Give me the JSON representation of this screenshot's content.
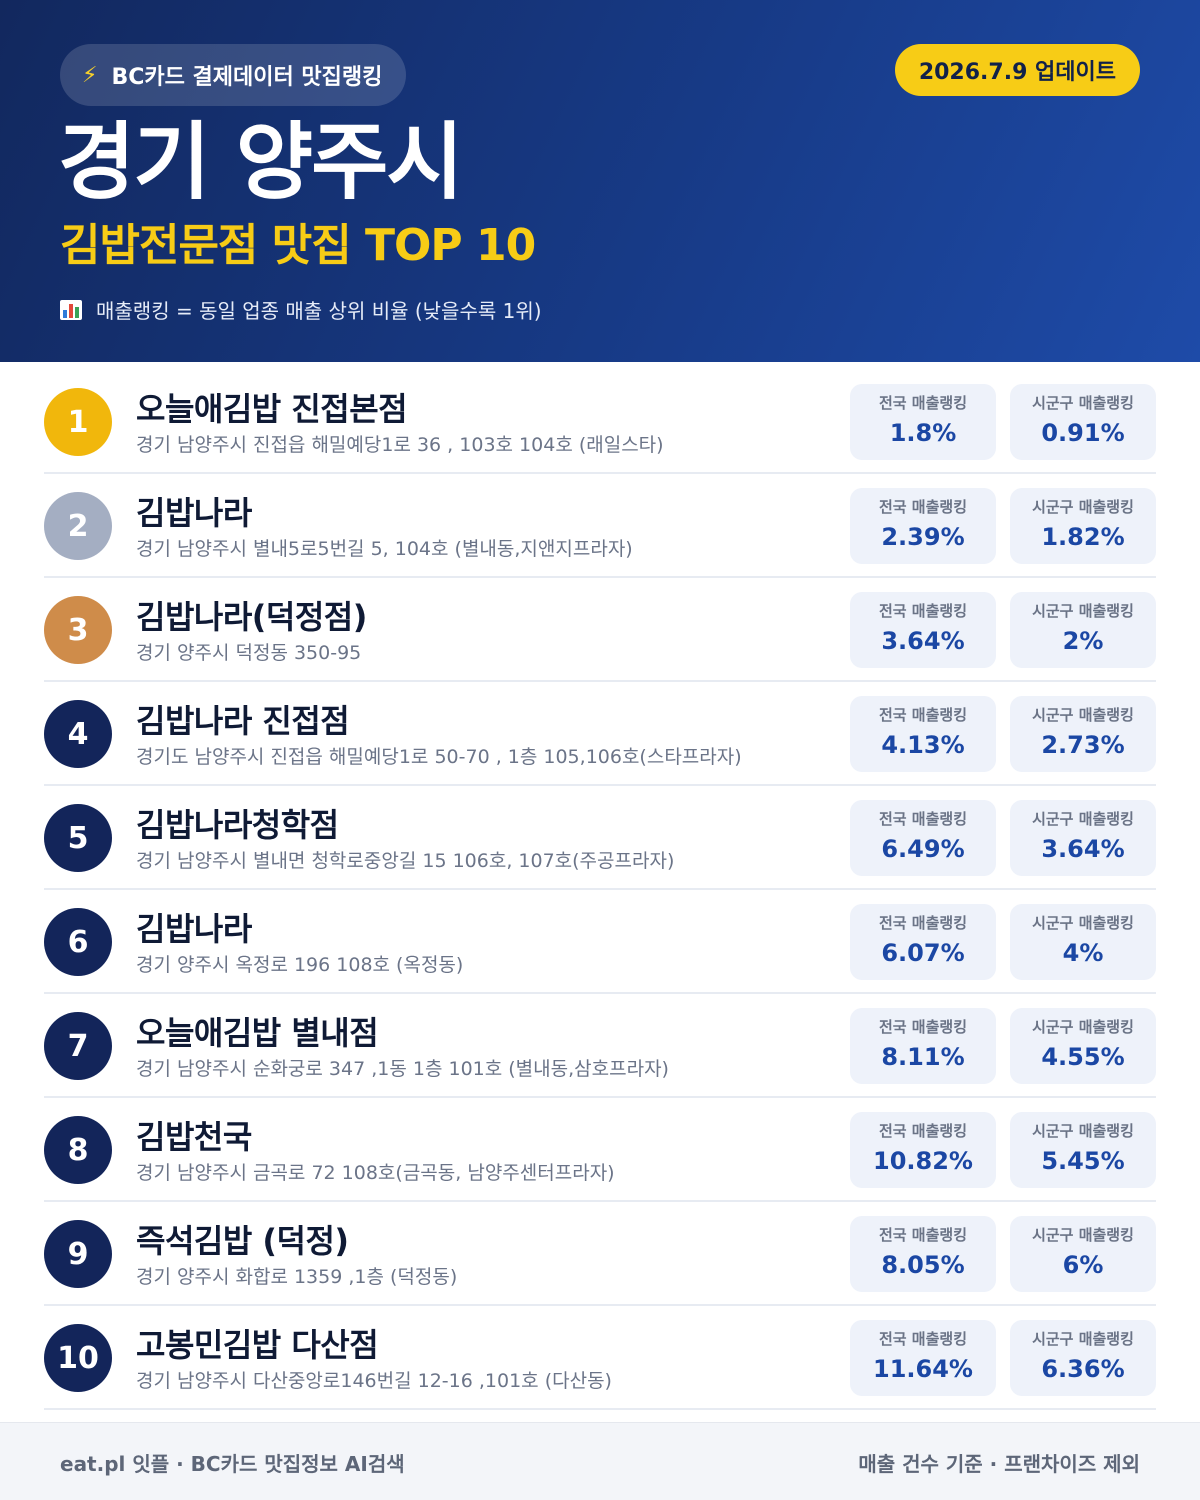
{
  "header": {
    "badge_icon": "lightning-bolt-icon",
    "badge_text": "BC카드 결제데이터 맛집랭킹",
    "update_label": "2026.7.9 업데이트",
    "city": "경기 양주시",
    "category": "김밥전문점 맛집 TOP 10",
    "legend_icon": "bar-chart-icon",
    "legend_text": "매출랭킹 = 동일 업종 매출 상위 비율 (낮을수록 1위)"
  },
  "stat_labels": {
    "national": "전국 매출랭킹",
    "local": "시군구 매출랭킹"
  },
  "restaurants": [
    {
      "rank": "1",
      "name": "오늘애김밥 진접본점",
      "address": "경기 남양주시 진접읍 해밀예당1로 36 , 103호 104호 (래일스타)",
      "national": "1.8%",
      "local": "0.91%"
    },
    {
      "rank": "2",
      "name": "김밥나라",
      "address": "경기 남양주시 별내5로5번길 5, 104호 (별내동,지앤지프라자)",
      "national": "2.39%",
      "local": "1.82%"
    },
    {
      "rank": "3",
      "name": "김밥나라(덕정점)",
      "address": "경기 양주시 덕정동 350-95",
      "national": "3.64%",
      "local": "2%"
    },
    {
      "rank": "4",
      "name": "김밥나라 진접점",
      "address": "경기도 남양주시 진접읍 해밀예당1로 50-70 , 1층 105,106호(스타프라자)",
      "national": "4.13%",
      "local": "2.73%"
    },
    {
      "rank": "5",
      "name": "김밥나라청학점",
      "address": "경기 남양주시 별내면 청학로중앙길 15 106호, 107호(주공프라자)",
      "national": "6.49%",
      "local": "3.64%"
    },
    {
      "rank": "6",
      "name": "김밥나라",
      "address": "경기 양주시 옥정로 196 108호 (옥정동)",
      "national": "6.07%",
      "local": "4%"
    },
    {
      "rank": "7",
      "name": "오늘애김밥 별내점",
      "address": "경기 남양주시 순화궁로 347 ,1동 1층 101호 (별내동,삼호프라자)",
      "national": "8.11%",
      "local": "4.55%"
    },
    {
      "rank": "8",
      "name": "김밥천국",
      "address": "경기 남양주시 금곡로 72 108호(금곡동, 남양주센터프라자)",
      "national": "10.82%",
      "local": "5.45%"
    },
    {
      "rank": "9",
      "name": "즉석김밥 (덕정)",
      "address": "경기 양주시 화합로 1359 ,1층 (덕정동)",
      "national": "8.05%",
      "local": "6%"
    },
    {
      "rank": "10",
      "name": "고봉민김밥 다산점",
      "address": "경기 남양주시 다산중앙로146번길 12-16 ,101호 (다산동)",
      "national": "11.64%",
      "local": "6.36%"
    }
  ],
  "footer": {
    "left": "eat.pl 잇플 · BC카드 맛집정보 AI검색",
    "right": "매출 건수 기준 · 프랜차이즈 제외"
  },
  "colors": {
    "header_bg": "#173a86",
    "accent_yellow": "#f7cc16",
    "gold": "#f1b70c",
    "silver": "#a4aec2",
    "bronze": "#cf8c4a",
    "rank_navy": "#13255a",
    "value_blue": "#1b47a4"
  }
}
